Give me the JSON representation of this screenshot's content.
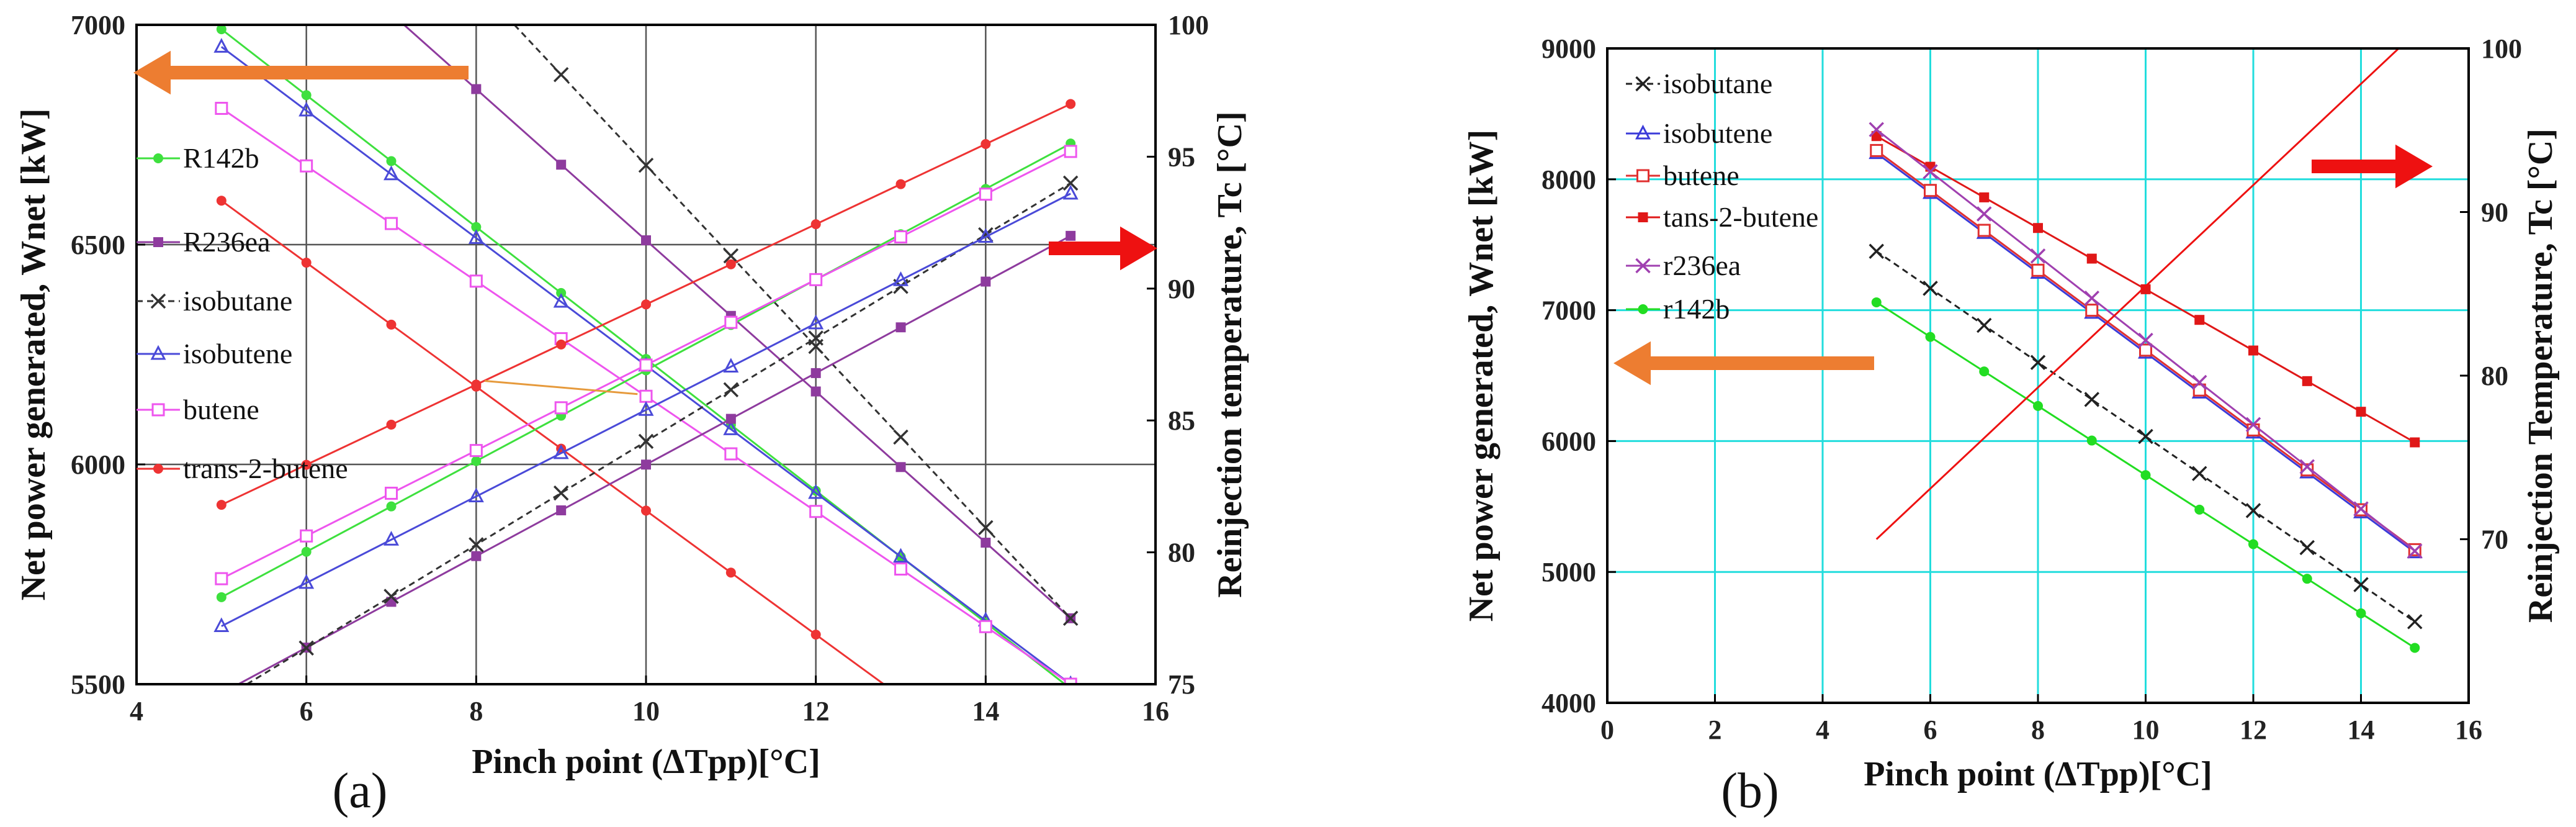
{
  "figure": {
    "panel_labels": [
      "(a)",
      "(b)"
    ]
  },
  "chart_data": [
    {
      "type": "line",
      "panel": "(a)",
      "title": "",
      "xlabel": "Pinch point (ΔTpp)[°C]",
      "ylabel_left": "Net power generated, Wnet [kW]",
      "ylabel_right": "Reinjection temperature, Tc [°C]",
      "xlim": [
        4,
        16
      ],
      "ylim_left": [
        5500,
        7000
      ],
      "ylim_right": [
        75,
        100
      ],
      "xticks": [
        "4",
        "6",
        "8",
        "10",
        "12",
        "14",
        "16"
      ],
      "yticks_left": [
        "5500",
        "6000",
        "6500",
        "7000"
      ],
      "yticks_right": [
        "75",
        "80",
        "85",
        "90",
        "95",
        "100"
      ],
      "grid_x": [
        6,
        8,
        10,
        12,
        14
      ],
      "grid_y": [
        6000,
        6500
      ],
      "legend": [
        {
          "label": "R142b",
          "color": "#3ee03e",
          "marker": "circle"
        },
        {
          "label": "R236ea",
          "color": "#8e3b9e",
          "marker": "square"
        },
        {
          "label": "isobutane",
          "color": "#333333",
          "marker": "x"
        },
        {
          "label": "isobutene",
          "color": "#4a4ad8",
          "marker": "triangle"
        },
        {
          "label": "butene",
          "color": "#ee55ee",
          "marker": "open-square"
        },
        {
          "label": "trans-2-butene",
          "color": "#ee3333",
          "marker": "circle"
        }
      ],
      "series": [
        {
          "name": "R142b",
          "axis": "left",
          "x": [
            5,
            15
          ],
          "y": [
            6990,
            5490
          ]
        },
        {
          "name": "R236ea",
          "axis": "left",
          "x": [
            7.15,
            15
          ],
          "y": [
            7000,
            5650
          ]
        },
        {
          "name": "isobutane",
          "axis": "left",
          "x": [
            8.45,
            15
          ],
          "y": [
            7000,
            5650
          ]
        },
        {
          "name": "isobutene",
          "axis": "left",
          "x": [
            5,
            15
          ],
          "y": [
            6950,
            5500
          ]
        },
        {
          "name": "butene",
          "axis": "left",
          "x": [
            5,
            15
          ],
          "y": [
            6810,
            5500
          ]
        },
        {
          "name": "trans-2-butene",
          "axis": "left",
          "x": [
            5,
            12.8
          ],
          "y": [
            6600,
            5500
          ]
        },
        {
          "name": "R142b",
          "axis": "right",
          "x": [
            5,
            15
          ],
          "y": [
            78.3,
            95.5
          ]
        },
        {
          "name": "R236ea",
          "axis": "right",
          "x": [
            5.2,
            15
          ],
          "y": [
            75,
            92
          ]
        },
        {
          "name": "isobutane",
          "axis": "right",
          "x": [
            5.3,
            15
          ],
          "y": [
            75,
            94
          ]
        },
        {
          "name": "isobutene",
          "axis": "right",
          "x": [
            5,
            15
          ],
          "y": [
            77.2,
            93.6
          ]
        },
        {
          "name": "butene",
          "axis": "right",
          "x": [
            5,
            15
          ],
          "y": [
            79,
            95.2
          ]
        },
        {
          "name": "trans-2-butene",
          "axis": "right",
          "x": [
            5,
            15
          ],
          "y": [
            81.8,
            97
          ]
        }
      ],
      "annotations": [
        {
          "type": "arrow",
          "direction": "left",
          "color": "#ed7d31",
          "meaning": "left axis"
        },
        {
          "type": "arrow",
          "direction": "right",
          "color": "#ee1111",
          "meaning": "right axis"
        }
      ]
    },
    {
      "type": "line",
      "panel": "(b)",
      "title": "",
      "xlabel": "Pinch point (ΔTpp)[°C]",
      "ylabel_left": "Net power generated, Wnet [kW]",
      "ylabel_right": "Reinjection Temperature, Tc [°C]",
      "xlim": [
        0,
        16
      ],
      "ylim_left": [
        4000,
        9000
      ],
      "ylim_right": [
        60,
        100
      ],
      "xticks": [
        "0",
        "2",
        "4",
        "6",
        "8",
        "10",
        "12",
        "14",
        "16"
      ],
      "yticks_left": [
        "4000",
        "5000",
        "6000",
        "7000",
        "8000",
        "9000"
      ],
      "yticks_right": [
        "70",
        "80",
        "90",
        "100"
      ],
      "grid_x": [
        2,
        4,
        6,
        8,
        10,
        12,
        14
      ],
      "grid_y": [
        5000,
        6000,
        7000,
        8000
      ],
      "legend": [
        {
          "label": "isobutane",
          "color": "#222222",
          "marker": "x"
        },
        {
          "label": "isobutene",
          "color": "#3b3bd9",
          "marker": "triangle"
        },
        {
          "label": "butene",
          "color": "#e03030",
          "marker": "open-square"
        },
        {
          "label": "tans-2-butene",
          "color": "#e01818",
          "marker": "square"
        },
        {
          "label": "r236ea",
          "color": "#a040b0",
          "marker": "x"
        },
        {
          "label": "r142b",
          "color": "#22dd22",
          "marker": "circle"
        }
      ],
      "series": [
        {
          "name": "isobutane",
          "axis": "left",
          "x": [
            5,
            15
          ],
          "y": [
            7450,
            4620
          ]
        },
        {
          "name": "isobutene",
          "axis": "left",
          "x": [
            5,
            15
          ],
          "y": [
            8200,
            5150
          ]
        },
        {
          "name": "butene",
          "axis": "left",
          "x": [
            5,
            15
          ],
          "y": [
            8220,
            5170
          ]
        },
        {
          "name": "tans-2-butene",
          "axis": "left",
          "x": [
            5,
            15
          ],
          "y": [
            8330,
            5990
          ]
        },
        {
          "name": "r236ea",
          "axis": "left",
          "x": [
            5,
            15
          ],
          "y": [
            8380,
            5160
          ]
        },
        {
          "name": "r142b",
          "axis": "left",
          "x": [
            5,
            15
          ],
          "y": [
            7060,
            4420
          ]
        },
        {
          "name": "reinjection temperature",
          "axis": "right",
          "x": [
            5,
            14.7
          ],
          "y": [
            70,
            100
          ]
        }
      ],
      "annotations": [
        {
          "type": "arrow",
          "direction": "left",
          "color": "#ed7d31",
          "meaning": "left axis"
        },
        {
          "type": "arrow",
          "direction": "right",
          "color": "#ee1111",
          "meaning": "right axis"
        }
      ]
    }
  ]
}
